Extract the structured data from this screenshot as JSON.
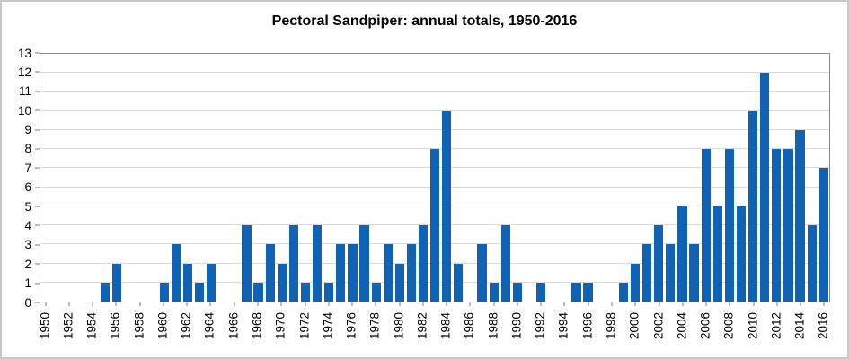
{
  "chart_data": {
    "type": "bar",
    "title": "Pectoral Sandpiper: annual totals, 1950-2016",
    "xlabel": "",
    "ylabel": "",
    "categories": [
      1950,
      1951,
      1952,
      1953,
      1954,
      1955,
      1956,
      1957,
      1958,
      1959,
      1960,
      1961,
      1962,
      1963,
      1964,
      1965,
      1966,
      1967,
      1968,
      1969,
      1970,
      1971,
      1972,
      1973,
      1974,
      1975,
      1976,
      1977,
      1978,
      1979,
      1980,
      1981,
      1982,
      1983,
      1984,
      1985,
      1986,
      1987,
      1988,
      1989,
      1990,
      1991,
      1992,
      1993,
      1994,
      1995,
      1996,
      1997,
      1998,
      1999,
      2000,
      2001,
      2002,
      2003,
      2004,
      2005,
      2006,
      2007,
      2008,
      2009,
      2010,
      2011,
      2012,
      2013,
      2014,
      2015,
      2016
    ],
    "values": [
      0,
      0,
      0,
      0,
      0,
      1,
      2,
      0,
      0,
      0,
      1,
      3,
      2,
      1,
      2,
      0,
      0,
      4,
      1,
      3,
      2,
      4,
      1,
      4,
      1,
      3,
      3,
      4,
      1,
      3,
      2,
      3,
      4,
      8,
      10,
      2,
      0,
      3,
      1,
      4,
      1,
      0,
      1,
      0,
      0,
      1,
      1,
      0,
      0,
      1,
      2,
      3,
      4,
      3,
      5,
      3,
      8,
      5,
      8,
      5,
      10,
      12,
      8,
      8,
      9,
      4,
      7
    ],
    "ylim": [
      0,
      13
    ],
    "ytick_interval": 1,
    "xtick_label_interval": 2,
    "x_label_rotation_deg": 90,
    "grid": true,
    "legend": "none"
  },
  "colors": {
    "bar": "#0f62b4",
    "gridline": "#d9d9d9",
    "plot_border": "#8a8a8a",
    "axis": "#6e6e6e",
    "tick": "#7a7a7a",
    "text": "#000000",
    "frame_border": "#c9c9c9",
    "background": "#ffffff"
  }
}
